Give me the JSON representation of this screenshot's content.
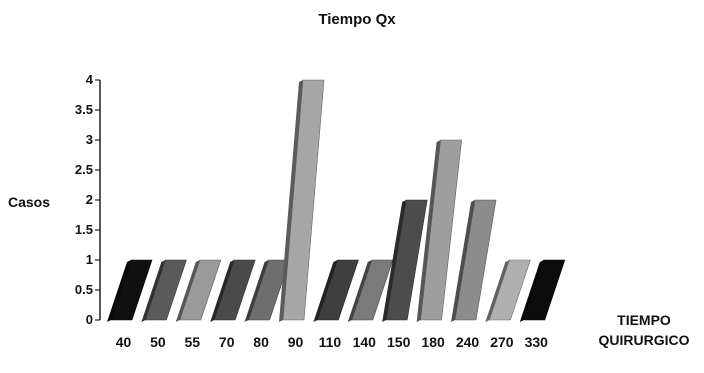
{
  "chart_data": {
    "type": "bar",
    "title": "Tiempo Qx",
    "ylabel": "Casos",
    "xlabel": "TIEMPO QUIRURGICO",
    "categories": [
      "40",
      "50",
      "55",
      "70",
      "80",
      "90",
      "110",
      "140",
      "150",
      "180",
      "240",
      "270",
      "330"
    ],
    "values": [
      1,
      1,
      1,
      1,
      1,
      4,
      1,
      1,
      2,
      3,
      2,
      1,
      1
    ],
    "yticks": [
      "0",
      "0.5",
      "1",
      "1.5",
      "2",
      "2.5",
      "3",
      "3.5",
      "4"
    ],
    "ylim": [
      0,
      4
    ],
    "colors": [
      "#101010",
      "#5a5a5a",
      "#9a9a9a",
      "#4a4a4a",
      "#6e6e6e",
      "#a6a6a6",
      "#3e3e3e",
      "#7a7a7a",
      "#4c4c4c",
      "#9e9e9e",
      "#8c8c8c",
      "#b0b0b0",
      "#0c0c0c"
    ]
  }
}
